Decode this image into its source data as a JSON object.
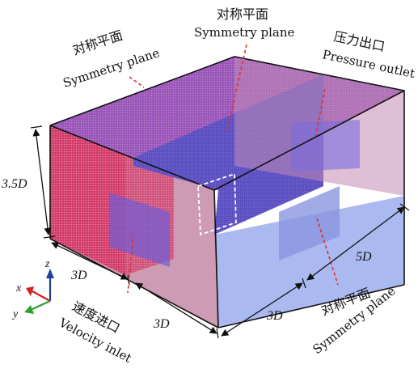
{
  "labels": {
    "sym_left_cn": "对称平面",
    "sym_left_en": "Symmetry plane",
    "sym_top_cn": "对称平面",
    "sym_top_en": "Symmetry plane",
    "outlet_cn": "压力出口",
    "outlet_en": "Pressure outlet",
    "inlet_cn": "速度进口",
    "inlet_en": "Velocity inlet",
    "sym_bottom_cn": "对称平面",
    "sym_bottom_en": "Symmetry plane"
  },
  "dimensions": {
    "height": "3.5D",
    "depth_left": "3D",
    "front_width": "3D",
    "right_short": "3D",
    "length": "5D"
  },
  "axes": {
    "z": "z",
    "x": "x",
    "y": "y"
  },
  "colors": {
    "inlet_face": "#d13a6a",
    "top_face": "#9a55b8",
    "mesh_band": "#5a4ec0",
    "bottom_face": "#a5b5ee",
    "front_face": "#c48aa6",
    "outlet_face": "#c38ab4",
    "leader_line": "#e03030",
    "axis_z": "#1f3f9a",
    "axis_x": "#d62020",
    "axis_y": "#2aa02a"
  }
}
